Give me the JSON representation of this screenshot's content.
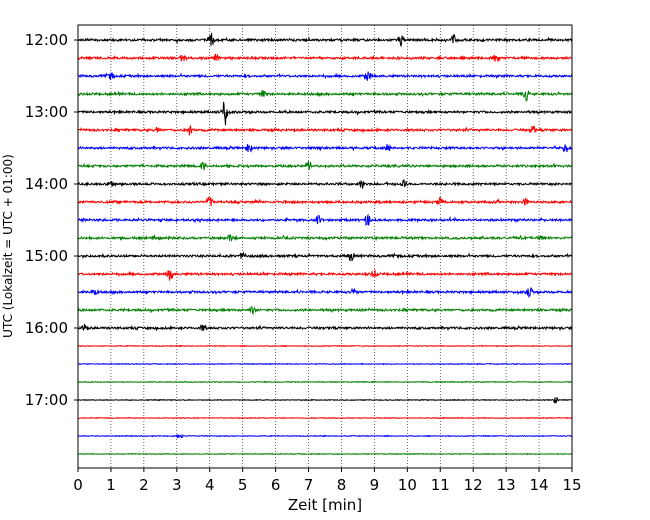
{
  "chart_data": {
    "type": "line",
    "title": "",
    "xlabel": "Zeit  [min]",
    "ylabel": "UTC (Lokalzeit = UTC + 01:00)",
    "xlim": [
      0,
      15
    ],
    "x_ticks": [
      "0",
      "1",
      "2",
      "3",
      "4",
      "5",
      "6",
      "7",
      "8",
      "9",
      "10",
      "11",
      "12",
      "13",
      "14",
      "15"
    ],
    "y_ticks": [
      "12:00",
      "13:00",
      "14:00",
      "15:00",
      "16:00",
      "17:00"
    ],
    "trace_interval_min": 15,
    "grid": "vertical dotted",
    "colors": [
      "#000000",
      "#ff0000",
      "#0000ff",
      "#008000"
    ],
    "series": [
      {
        "start": "12:00",
        "color": "#000000",
        "events": [
          [
            4.05,
            1.0
          ],
          [
            9.8,
            0.8
          ],
          [
            11.4,
            0.7
          ]
        ]
      },
      {
        "start": "12:15",
        "color": "#ff0000",
        "events": [
          [
            3.2,
            0.8
          ],
          [
            4.2,
            0.6
          ],
          [
            12.7,
            0.8
          ]
        ]
      },
      {
        "start": "12:30",
        "color": "#0000ff",
        "events": [
          [
            1.0,
            0.5
          ],
          [
            8.8,
            1.0
          ]
        ]
      },
      {
        "start": "12:45",
        "color": "#008000",
        "events": [
          [
            5.6,
            0.6
          ],
          [
            13.6,
            1.0
          ]
        ]
      },
      {
        "start": "13:00",
        "color": "#000000",
        "events": [
          [
            4.45,
            2.5
          ]
        ]
      },
      {
        "start": "13:15",
        "color": "#ff0000",
        "events": [
          [
            2.4,
            0.6
          ],
          [
            3.4,
            0.8
          ],
          [
            13.8,
            0.7
          ]
        ]
      },
      {
        "start": "13:30",
        "color": "#0000ff",
        "events": [
          [
            5.2,
            0.8
          ],
          [
            9.4,
            0.6
          ],
          [
            14.8,
            0.8
          ]
        ]
      },
      {
        "start": "13:45",
        "color": "#008000",
        "events": [
          [
            3.8,
            0.6
          ],
          [
            7.0,
            0.5
          ]
        ]
      },
      {
        "start": "14:00",
        "color": "#000000",
        "events": [
          [
            1.0,
            0.5
          ],
          [
            8.6,
            0.8
          ],
          [
            9.9,
            0.6
          ]
        ]
      },
      {
        "start": "14:15",
        "color": "#ff0000",
        "events": [
          [
            4.0,
            0.9
          ],
          [
            11.0,
            0.6
          ],
          [
            13.6,
            0.6
          ]
        ]
      },
      {
        "start": "14:30",
        "color": "#0000ff",
        "events": [
          [
            7.3,
            0.6
          ],
          [
            8.8,
            1.0
          ]
        ]
      },
      {
        "start": "14:45",
        "color": "#008000",
        "events": [
          [
            4.6,
            0.5
          ],
          [
            14.0,
            0.5
          ]
        ]
      },
      {
        "start": "15:00",
        "color": "#000000",
        "events": [
          [
            5.0,
            0.5
          ],
          [
            8.3,
            0.9
          ]
        ]
      },
      {
        "start": "15:15",
        "color": "#ff0000",
        "events": [
          [
            2.8,
            1.0
          ],
          [
            9.0,
            0.6
          ]
        ]
      },
      {
        "start": "15:30",
        "color": "#0000ff",
        "events": [
          [
            0.5,
            0.5
          ],
          [
            8.4,
            0.6
          ],
          [
            13.7,
            1.0
          ]
        ]
      },
      {
        "start": "15:45",
        "color": "#008000",
        "events": [
          [
            5.3,
            0.5
          ]
        ]
      },
      {
        "start": "16:00",
        "color": "#000000",
        "events": [
          [
            0.2,
            0.6
          ],
          [
            3.8,
            0.5
          ]
        ]
      },
      {
        "start": "16:15",
        "color": "#ff0000",
        "events": []
      },
      {
        "start": "16:30",
        "color": "#0000ff",
        "events": []
      },
      {
        "start": "16:45",
        "color": "#008000",
        "events": []
      },
      {
        "start": "17:00",
        "color": "#000000",
        "events": [
          [
            14.5,
            0.5
          ]
        ]
      },
      {
        "start": "17:15",
        "color": "#ff0000",
        "events": []
      },
      {
        "start": "17:30",
        "color": "#0000ff",
        "events": [
          [
            3.1,
            0.4
          ]
        ]
      },
      {
        "start": "17:45",
        "color": "#008000",
        "events": []
      }
    ]
  }
}
